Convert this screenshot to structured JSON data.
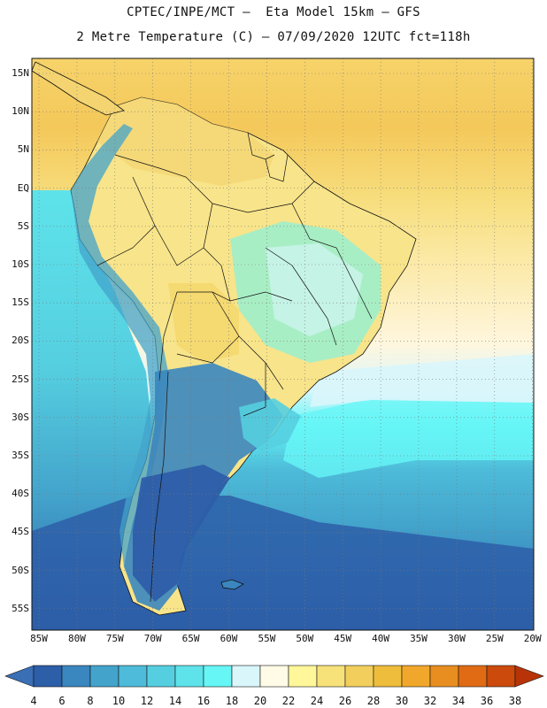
{
  "title": {
    "line1": "CPTEC/INPE/MCT –  Eta Model 15km – GFS",
    "line2": "2 Metre Temperature (C) – 07/09/2020 12UTC fct=118h"
  },
  "map": {
    "lat_labels": [
      "15N",
      "10N",
      "5N",
      "EQ",
      "5S",
      "10S",
      "15S",
      "20S",
      "25S",
      "30S",
      "35S",
      "40S",
      "45S",
      "50S",
      "55S"
    ],
    "lon_labels": [
      "85W",
      "80W",
      "75W",
      "70W",
      "65W",
      "60W",
      "55W",
      "50W",
      "45W",
      "40W",
      "35W",
      "30W",
      "25W",
      "20W"
    ],
    "grid": "dotted"
  },
  "colorbar": {
    "labels": [
      "4",
      "6",
      "8",
      "10",
      "12",
      "14",
      "16",
      "18",
      "20",
      "22",
      "24",
      "26",
      "28",
      "30",
      "32",
      "34",
      "36",
      "38"
    ],
    "colors": [
      "#3b6fb5",
      "#2d5ea8",
      "#3a86bf",
      "#43a3cb",
      "#4dbbd9",
      "#55cfe0",
      "#5ee3ea",
      "#66f6f6",
      "#d9f6fb",
      "#fffbe6",
      "#fff79a",
      "#f7e27a",
      "#f2cf5c",
      "#efbd3c",
      "#f0a72b",
      "#e88e20",
      "#e06b14",
      "#cc4a0c",
      "#b83408"
    ]
  }
}
